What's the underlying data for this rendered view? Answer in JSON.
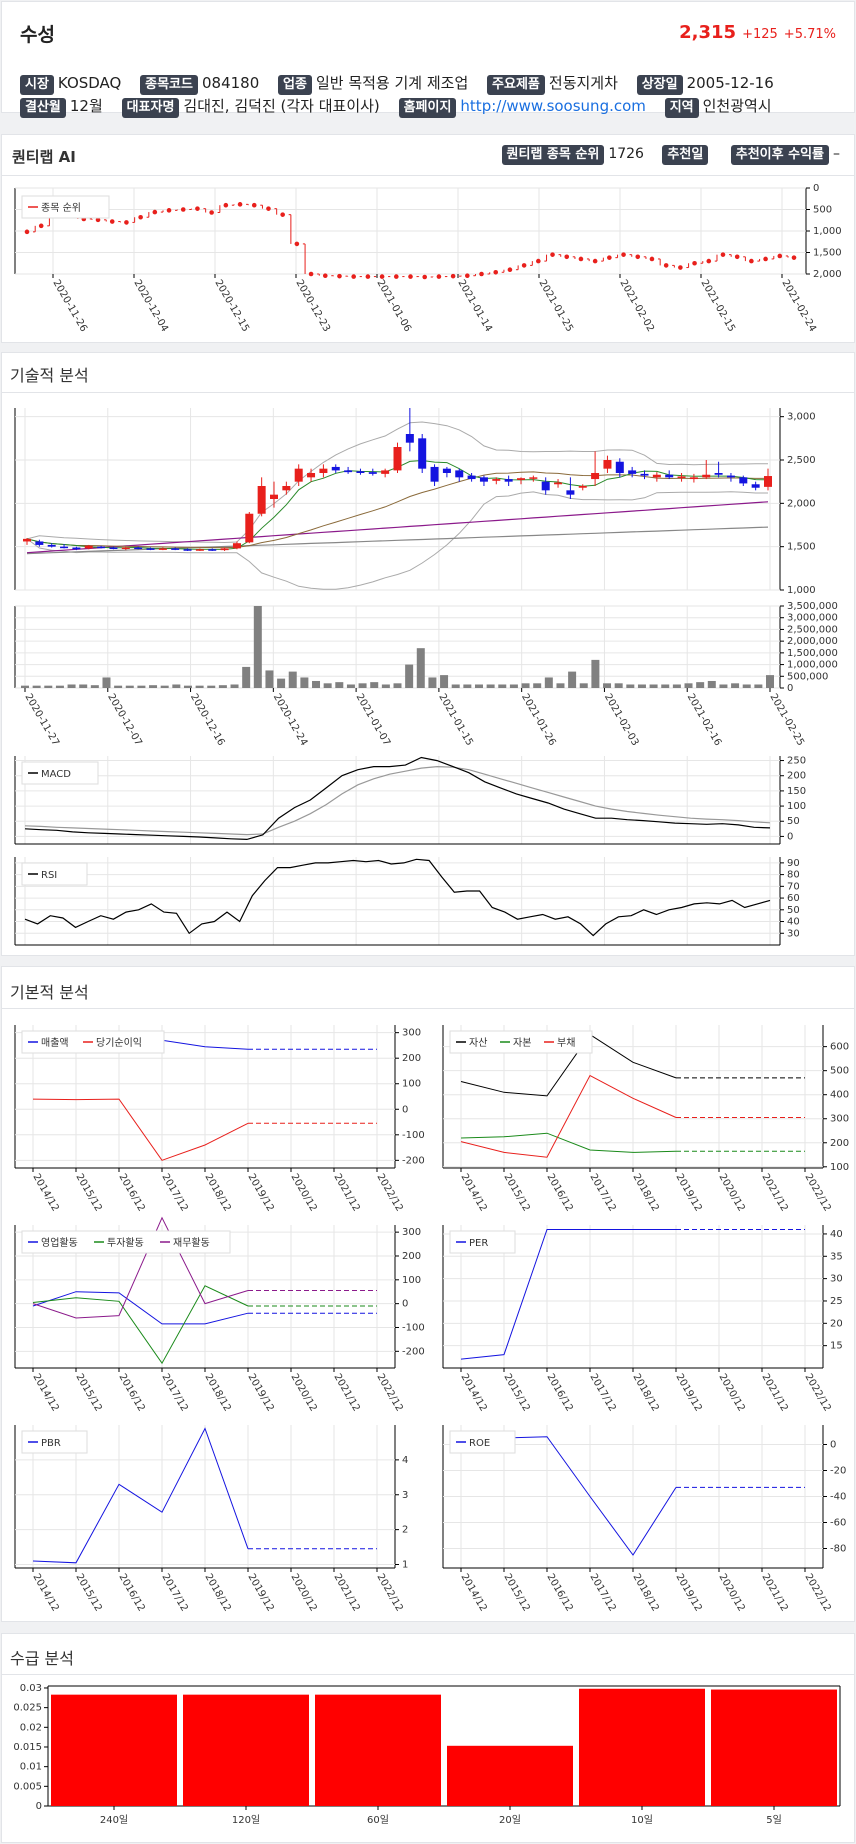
{
  "header": {
    "name": "수성",
    "price": "2,315",
    "change": "+125",
    "change_pct": "+5.71%"
  },
  "info_row1": [
    {
      "label": "시장",
      "value": "KOSDAQ"
    },
    {
      "label": "종목코드",
      "value": "084180"
    },
    {
      "label": "업종",
      "value": "일반 목적용 기계 제조업"
    },
    {
      "label": "주요제품",
      "value": "전동지게차"
    },
    {
      "label": "상장일",
      "value": "2005-12-16"
    }
  ],
  "info_row2": [
    {
      "label": "결산월",
      "value": "12월"
    },
    {
      "label": "대표자명",
      "value": "김대진, 김덕진 (각자 대표이사)"
    },
    {
      "label": "홈페이지",
      "value": "http://www.soosung.com"
    },
    {
      "label": "지역",
      "value": "인천광역시"
    }
  ],
  "quantilab": {
    "title": "퀀티랩 AI",
    "rank_label": "퀀티랩 종목 순위",
    "rank_value": "1726",
    "rec_date_label": "추천일",
    "rec_date_value": "",
    "rec_return_label": "추천이후 수익률",
    "rec_return_value": "–"
  },
  "sections": {
    "technical": "기술적 분석",
    "fundamental": "기본적 분석",
    "supply": "수급 분석"
  },
  "colors": {
    "up": "#e8201c",
    "down": "#1414e0",
    "tag_bg": "#3b4250",
    "link": "#1a6fe0"
  },
  "chart_data": [
    {
      "id": "rank",
      "type": "line",
      "legend": [
        "종목 순위"
      ],
      "y_inverted": true,
      "ylim": [
        0,
        2000
      ],
      "yticks": [
        "0",
        "500",
        "1,000",
        "1,500",
        "2,000"
      ],
      "xlabels": [
        "2020-11-26",
        "2020-12-04",
        "2020-12-15",
        "2020-12-23",
        "2021-01-06",
        "2021-01-14",
        "2021-01-25",
        "2021-02-02",
        "2021-02-15",
        "2021-02-24"
      ],
      "values": [
        1020,
        880,
        600,
        650,
        720,
        740,
        780,
        800,
        680,
        560,
        520,
        500,
        480,
        570,
        400,
        380,
        400,
        480,
        620,
        1300,
        2000,
        2040,
        2050,
        2060,
        2060,
        2060,
        2060,
        2060,
        2070,
        2060,
        2050,
        2040,
        2000,
        1960,
        1900,
        1800,
        1700,
        1550,
        1600,
        1650,
        1700,
        1620,
        1550,
        1600,
        1650,
        1800,
        1850,
        1750,
        1700,
        1550,
        1600,
        1700,
        1650,
        1580,
        1620
      ]
    },
    {
      "id": "price",
      "type": "candlestick",
      "ylim": [
        1000,
        3100
      ],
      "yticks": [
        "1,000",
        "1,500",
        "2,000",
        "2,500",
        "3,000"
      ],
      "candles": [
        [
          1560,
          1600,
          1520,
          1590
        ],
        [
          1560,
          1580,
          1500,
          1520
        ],
        [
          1520,
          1540,
          1490,
          1500
        ],
        [
          1500,
          1530,
          1480,
          1490
        ],
        [
          1490,
          1500,
          1460,
          1470
        ],
        [
          1480,
          1520,
          1470,
          1510
        ],
        [
          1500,
          1510,
          1480,
          1490
        ],
        [
          1490,
          1500,
          1470,
          1480
        ],
        [
          1480,
          1500,
          1460,
          1490
        ],
        [
          1490,
          1500,
          1470,
          1480
        ],
        [
          1480,
          1490,
          1460,
          1470
        ],
        [
          1470,
          1490,
          1460,
          1480
        ],
        [
          1480,
          1490,
          1460,
          1470
        ],
        [
          1470,
          1480,
          1450,
          1460
        ],
        [
          1460,
          1480,
          1450,
          1470
        ],
        [
          1470,
          1480,
          1450,
          1460
        ],
        [
          1460,
          1490,
          1450,
          1480
        ],
        [
          1480,
          1560,
          1470,
          1540
        ],
        [
          1550,
          1900,
          1540,
          1880
        ],
        [
          1880,
          2300,
          1850,
          2200
        ],
        [
          2050,
          2250,
          1950,
          2100
        ],
        [
          2150,
          2250,
          2100,
          2200
        ],
        [
          2250,
          2450,
          2200,
          2400
        ],
        [
          2300,
          2400,
          2250,
          2350
        ],
        [
          2350,
          2450,
          2300,
          2400
        ],
        [
          2420,
          2450,
          2350,
          2380
        ],
        [
          2380,
          2420,
          2340,
          2360
        ],
        [
          2370,
          2400,
          2330,
          2350
        ],
        [
          2360,
          2400,
          2320,
          2340
        ],
        [
          2340,
          2400,
          2300,
          2380
        ],
        [
          2380,
          2700,
          2350,
          2650
        ],
        [
          2800,
          3100,
          2600,
          2700
        ],
        [
          2750,
          2800,
          2350,
          2400
        ],
        [
          2420,
          2450,
          2200,
          2250
        ],
        [
          2400,
          2420,
          2300,
          2350
        ],
        [
          2380,
          2400,
          2250,
          2300
        ],
        [
          2320,
          2350,
          2250,
          2280
        ],
        [
          2300,
          2320,
          2200,
          2250
        ],
        [
          2260,
          2300,
          2220,
          2280
        ],
        [
          2280,
          2320,
          2200,
          2250
        ],
        [
          2270,
          2300,
          2220,
          2290
        ],
        [
          2290,
          2320,
          2250,
          2300
        ],
        [
          2250,
          2300,
          2100,
          2150
        ],
        [
          2220,
          2280,
          2180,
          2240
        ],
        [
          2150,
          2300,
          2050,
          2100
        ],
        [
          2180,
          2220,
          2150,
          2200
        ],
        [
          2280,
          2600,
          2200,
          2350
        ],
        [
          2400,
          2550,
          2350,
          2500
        ],
        [
          2480,
          2520,
          2300,
          2350
        ],
        [
          2380,
          2420,
          2300,
          2340
        ],
        [
          2340,
          2380,
          2280,
          2320
        ],
        [
          2300,
          2360,
          2250,
          2330
        ],
        [
          2330,
          2380,
          2280,
          2300
        ],
        [
          2300,
          2350,
          2250,
          2310
        ],
        [
          2280,
          2340,
          2240,
          2300
        ],
        [
          2300,
          2500,
          2280,
          2330
        ],
        [
          2350,
          2480,
          2300,
          2330
        ],
        [
          2320,
          2350,
          2250,
          2300
        ],
        [
          2300,
          2320,
          2200,
          2230
        ],
        [
          2220,
          2250,
          2150,
          2180
        ],
        [
          2190,
          2400,
          2150,
          2315
        ]
      ]
    },
    {
      "id": "volume",
      "type": "bar",
      "ylim": [
        0,
        3500000
      ],
      "yticks": [
        "0",
        "500,000",
        "1,000,000",
        "1,500,000",
        "2,000,000",
        "2,500,000",
        "3,000,000",
        "3,500,000"
      ],
      "xlabels": [
        "2020-11-27",
        "2020-12-07",
        "2020-12-16",
        "2020-12-24",
        "2021-01-07",
        "2021-01-15",
        "2021-01-26",
        "2021-02-03",
        "2021-02-16",
        "2021-02-25"
      ],
      "values": [
        100000,
        100000,
        100000,
        100000,
        150000,
        150000,
        120000,
        450000,
        100000,
        100000,
        100000,
        120000,
        100000,
        150000,
        100000,
        100000,
        100000,
        120000,
        150000,
        900000,
        3500000,
        750000,
        400000,
        700000,
        450000,
        300000,
        200000,
        250000,
        150000,
        200000,
        250000,
        150000,
        200000,
        1000000,
        1700000,
        450000,
        550000,
        150000,
        150000,
        150000,
        150000,
        150000,
        150000,
        200000,
        200000,
        450000,
        200000,
        700000,
        200000,
        1200000,
        200000,
        200000,
        150000,
        150000,
        150000,
        150000,
        150000,
        200000,
        250000,
        300000,
        150000,
        200000,
        150000,
        150000,
        550000
      ]
    },
    {
      "id": "macd",
      "type": "line",
      "legend": [
        "MACD"
      ],
      "ylim": [
        -25,
        265
      ],
      "yticks": [
        "0",
        "50",
        "100",
        "150",
        "200",
        "250"
      ],
      "values": [
        25,
        22,
        20,
        15,
        12,
        10,
        8,
        6,
        4,
        2,
        0,
        -2,
        -5,
        -8,
        -10,
        5,
        60,
        95,
        120,
        160,
        200,
        220,
        230,
        230,
        235,
        260,
        250,
        230,
        210,
        180,
        160,
        140,
        125,
        110,
        90,
        75,
        60,
        60,
        55,
        52,
        48,
        44,
        42,
        40,
        42,
        38,
        30,
        28
      ],
      "signal": [
        35,
        33,
        30,
        28,
        26,
        24,
        22,
        20,
        18,
        16,
        14,
        12,
        10,
        8,
        6,
        8,
        30,
        50,
        75,
        105,
        140,
        170,
        190,
        205,
        215,
        225,
        230,
        228,
        220,
        205,
        190,
        175,
        160,
        145,
        130,
        115,
        100,
        90,
        82,
        76,
        70,
        65,
        60,
        57,
        55,
        52,
        48,
        45
      ]
    },
    {
      "id": "rsi",
      "type": "line",
      "legend": [
        "RSI"
      ],
      "ylim": [
        20,
        95
      ],
      "yticks": [
        "30",
        "40",
        "50",
        "60",
        "70",
        "80",
        "90"
      ],
      "values": [
        42,
        38,
        45,
        43,
        35,
        40,
        45,
        42,
        48,
        50,
        55,
        48,
        47,
        30,
        38,
        40,
        48,
        40,
        62,
        75,
        86,
        86,
        88,
        90,
        90,
        91,
        92,
        91,
        92,
        89,
        90,
        93,
        92,
        78,
        65,
        66,
        66,
        52,
        48,
        42,
        44,
        46,
        42,
        44,
        38,
        28,
        38,
        44,
        45,
        50,
        46,
        50,
        52,
        55,
        56,
        55,
        58,
        52,
        55,
        58
      ]
    },
    {
      "id": "sales",
      "type": "line",
      "legend": [
        "매출액",
        "당기순이익"
      ],
      "xlabels": [
        "2014/12",
        "2015/12",
        "2016/12",
        "2017/12",
        "2018/12",
        "2019/12",
        "2020/12",
        "2021/12",
        "2022/12"
      ],
      "ylim": [
        -230,
        330
      ],
      "yticks": [
        "-200",
        "-100",
        "0",
        "100",
        "200",
        "300"
      ],
      "series": [
        {
          "name": "매출액",
          "values": [
            null,
            null,
            null,
            270,
            245,
            235,
            235,
            235,
            235
          ]
        },
        {
          "name": "당기순이익",
          "values": [
            40,
            38,
            40,
            -200,
            -140,
            -55,
            -55,
            -55,
            -55
          ]
        }
      ]
    },
    {
      "id": "balance",
      "type": "line",
      "legend": [
        "자산",
        "자본",
        "부채"
      ],
      "xlabels": [
        "2014/12",
        "2015/12",
        "2016/12",
        "2017/12",
        "2018/12",
        "2019/12",
        "2020/12",
        "2021/12",
        "2022/12"
      ],
      "ylim": [
        95,
        690
      ],
      "yticks": [
        "100",
        "200",
        "300",
        "400",
        "500",
        "600"
      ],
      "series": [
        {
          "name": "자산",
          "values": [
            455,
            410,
            395,
            650,
            535,
            470,
            470,
            470,
            470
          ]
        },
        {
          "name": "자본",
          "values": [
            220,
            225,
            240,
            170,
            160,
            165,
            165,
            165,
            165
          ]
        },
        {
          "name": "부채",
          "values": [
            205,
            160,
            140,
            480,
            385,
            305,
            305,
            305,
            305
          ]
        }
      ]
    },
    {
      "id": "cashflow",
      "type": "line",
      "legend": [
        "영업활동",
        "투자활동",
        "재무활동"
      ],
      "xlabels": [
        "2014/12",
        "2015/12",
        "2016/12",
        "2017/12",
        "2018/12",
        "2019/12",
        "2020/12",
        "2021/12",
        "2022/12"
      ],
      "ylim": [
        -270,
        330
      ],
      "yticks": [
        "-200",
        "-100",
        "0",
        "100",
        "200",
        "300"
      ],
      "series": [
        {
          "name": "영업활동",
          "values": [
            -10,
            50,
            45,
            -85,
            -85,
            -40,
            -40,
            -40,
            -40
          ]
        },
        {
          "name": "투자활동",
          "values": [
            5,
            25,
            10,
            -250,
            75,
            -10,
            -10,
            -10,
            -10
          ]
        },
        {
          "name": "재무활동",
          "values": [
            0,
            -60,
            -50,
            360,
            0,
            55,
            55,
            55,
            55
          ]
        }
      ]
    },
    {
      "id": "per",
      "type": "line",
      "legend": [
        "PER"
      ],
      "xlabels": [
        "2014/12",
        "2015/12",
        "2016/12",
        "2017/12",
        "2018/12",
        "2019/12",
        "2020/12",
        "2021/12",
        "2022/12"
      ],
      "ylim": [
        10,
        42
      ],
      "yticks": [
        "15",
        "20",
        "25",
        "30",
        "35",
        "40"
      ],
      "series": [
        {
          "name": "PER",
          "values": [
            12,
            13,
            41,
            41,
            41,
            41,
            41,
            41,
            41
          ]
        }
      ]
    },
    {
      "id": "pbr",
      "type": "line",
      "legend": [
        "PBR"
      ],
      "xlabels": [
        "2014/12",
        "2015/12",
        "2016/12",
        "2017/12",
        "2018/12",
        "2019/12",
        "2020/12",
        "2021/12",
        "2022/12"
      ],
      "ylim": [
        0.9,
        5
      ],
      "yticks": [
        "1",
        "2",
        "3",
        "4"
      ],
      "series": [
        {
          "name": "PBR",
          "values": [
            1.1,
            1.05,
            3.3,
            2.5,
            4.9,
            1.45,
            1.45,
            1.45,
            1.45
          ]
        }
      ]
    },
    {
      "id": "roe",
      "type": "line",
      "legend": [
        "ROE"
      ],
      "xlabels": [
        "2014/12",
        "2015/12",
        "2016/12",
        "2017/12",
        "2018/12",
        "2019/12",
        "2020/12",
        "2021/12",
        "2022/12"
      ],
      "ylim": [
        -95,
        15
      ],
      "yticks": [
        "-80",
        "-60",
        "-40",
        "-20",
        "0"
      ],
      "series": [
        {
          "name": "ROE",
          "values": [
            null,
            5,
            6,
            -40,
            -85,
            -33,
            -33,
            -33,
            -33
          ]
        }
      ]
    },
    {
      "id": "supply",
      "type": "bar",
      "categories": [
        "240일",
        "120일",
        "60일",
        "20일",
        "10일",
        "5일"
      ],
      "values": [
        0.0283,
        0.0283,
        0.0283,
        0.0153,
        0.0298,
        0.0296
      ],
      "ylim": [
        0,
        0.0305
      ],
      "yticks": [
        "0",
        "0.005",
        "0.01",
        "0.015",
        "0.02",
        "0.025",
        "0.03"
      ]
    }
  ]
}
